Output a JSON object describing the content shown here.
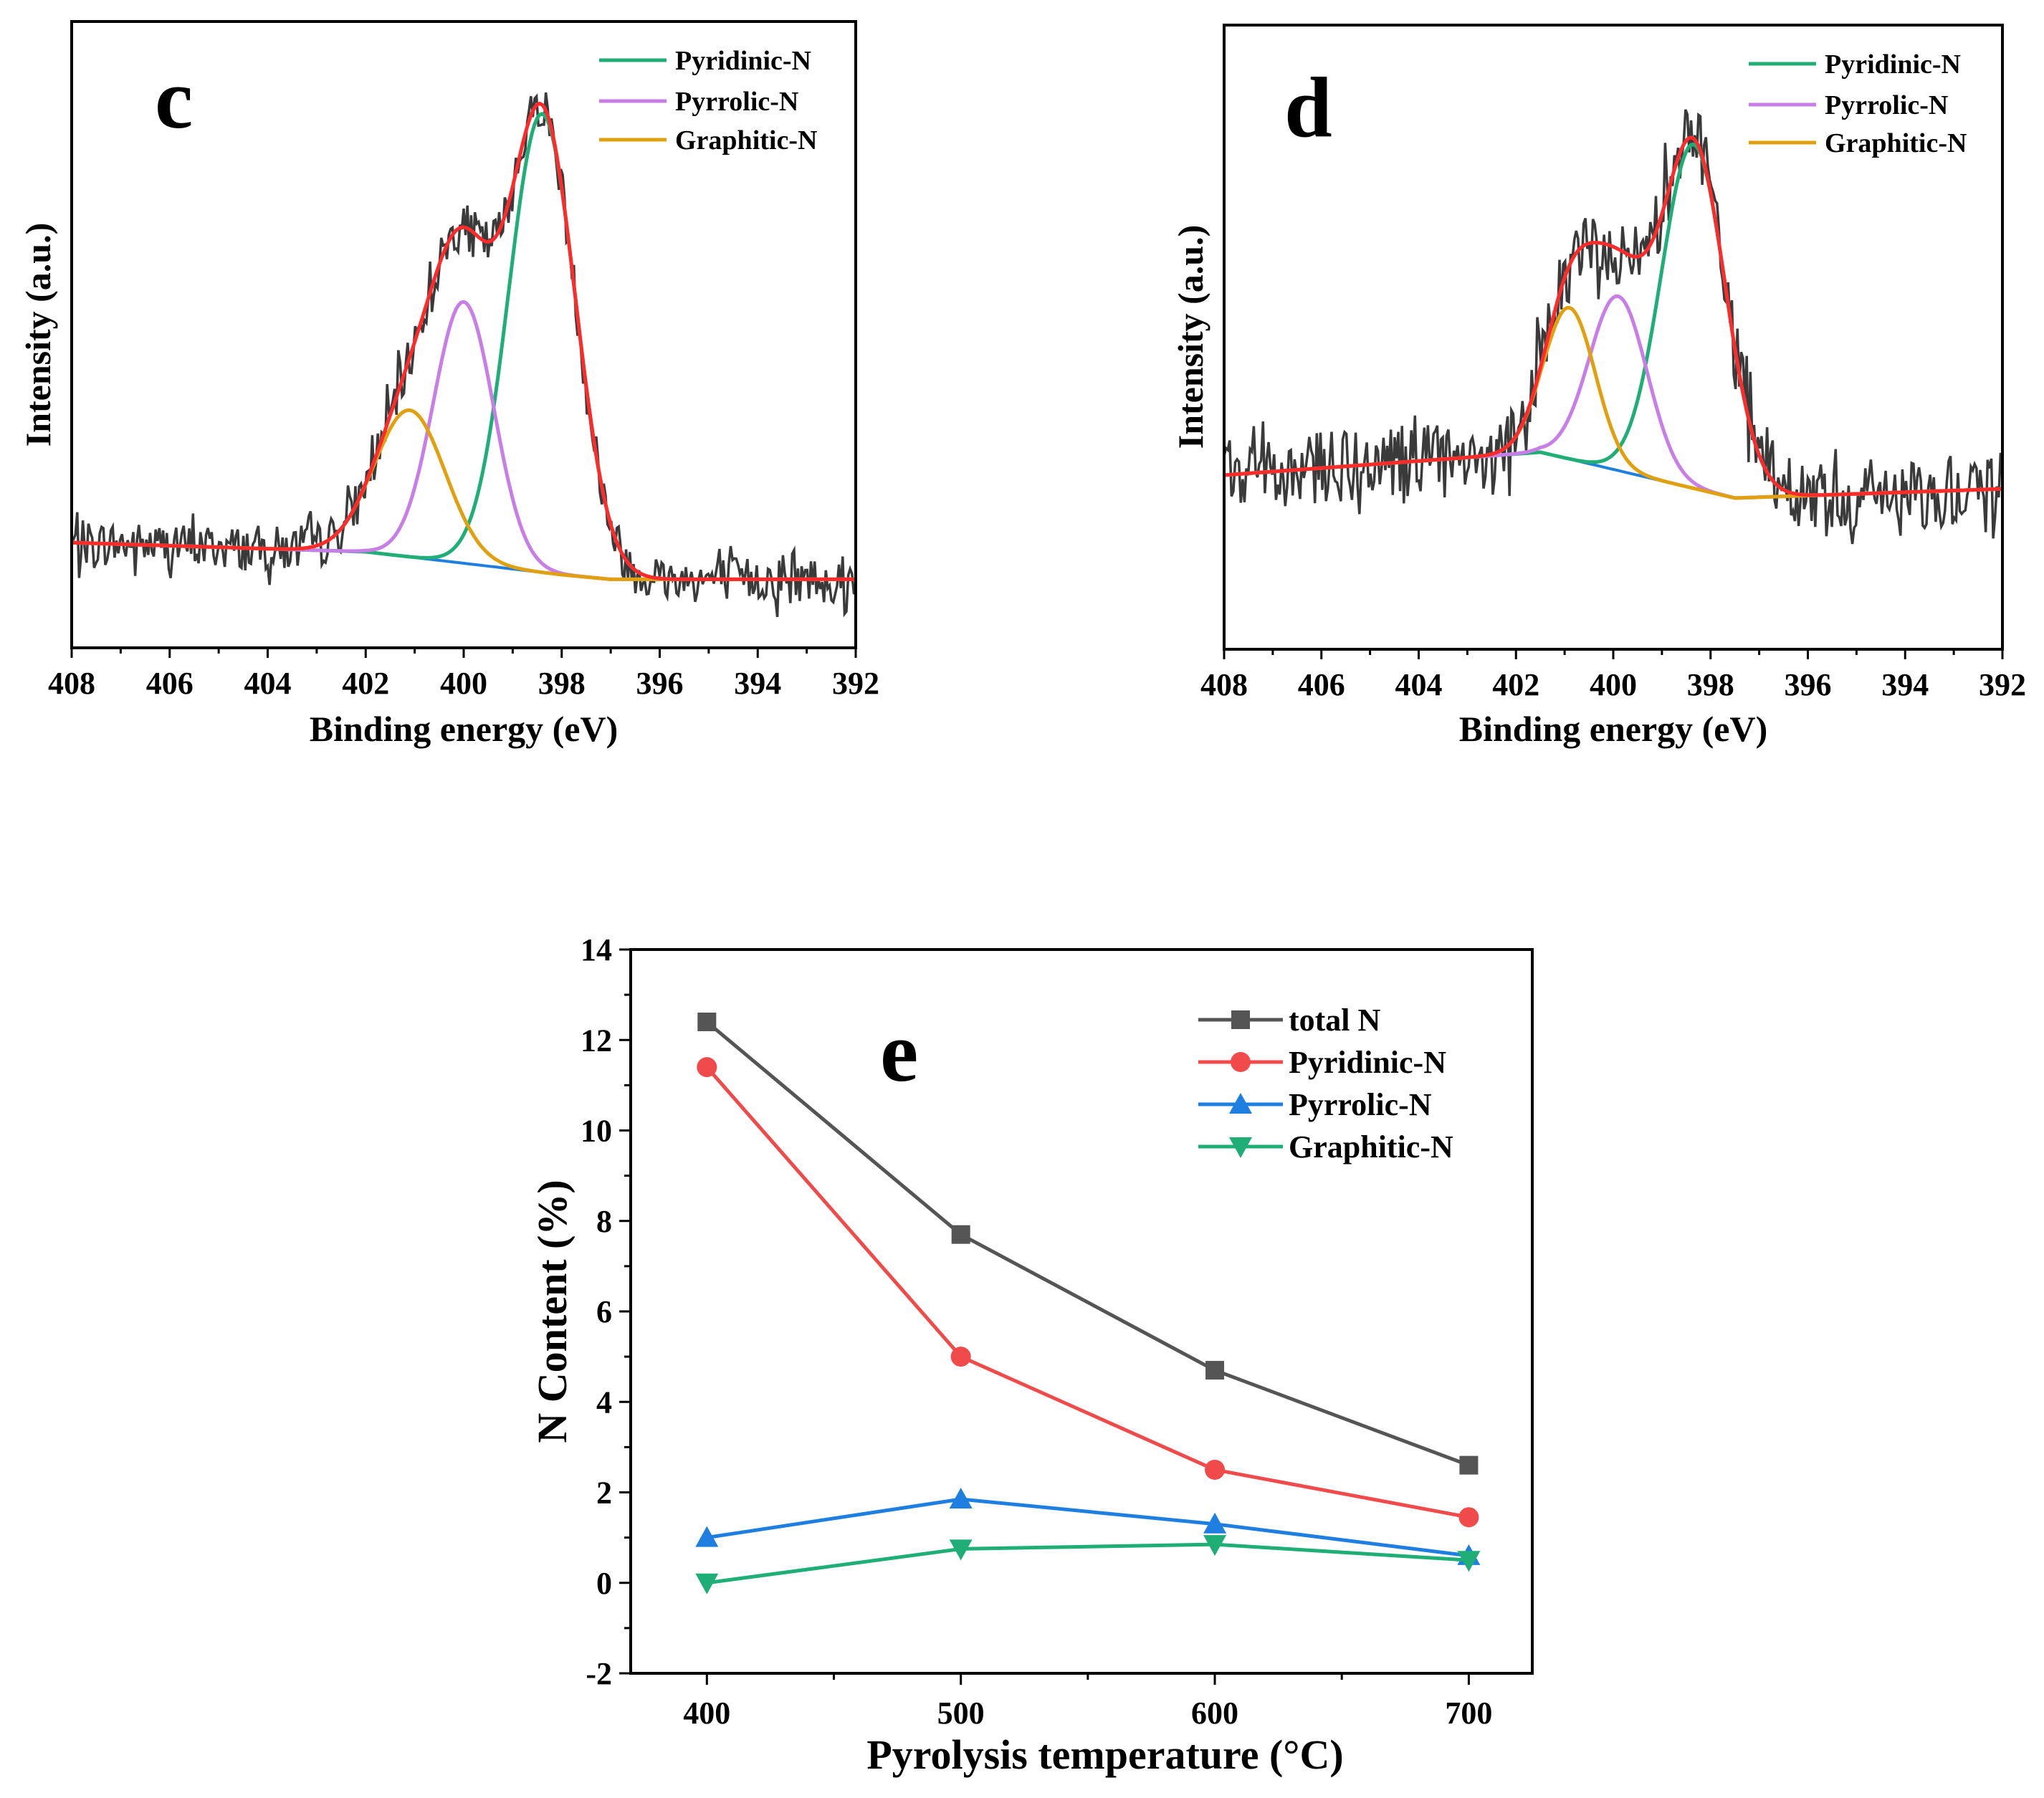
{
  "chart_data": [
    {
      "type": "line",
      "panel_label": "c",
      "title": "",
      "xlabel": "Binding energy (eV)",
      "ylabel": "Intensity (a.u.)",
      "xlim": [
        408,
        392
      ],
      "x_ticks": [
        408,
        406,
        404,
        402,
        400,
        398,
        396,
        394,
        392
      ],
      "y_ticks_labeled": false,
      "legend_position": "top-right",
      "colors": {
        "raw": "#3a3a3a",
        "envelope": "#ff2b2b",
        "background": "#1f7fe0",
        "Pyridinic-N": "#1fae76",
        "Pyrrolic-N": "#c77ee6",
        "Graphitic-N": "#e0a010"
      },
      "background": {
        "x": [
          408,
          402,
          398,
          397,
          392
        ],
        "y": [
          0.02,
          0.0,
          -0.05,
          -0.06,
          -0.06
        ]
      },
      "series": [
        {
          "name": "Pyridinic-N",
          "center": 398.4,
          "height": 1.0,
          "fwhm": 1.6
        },
        {
          "name": "Pyrrolic-N",
          "center": 400.0,
          "height": 0.57,
          "fwhm": 1.45
        },
        {
          "name": "Graphitic-N",
          "center": 401.1,
          "height": 0.32,
          "fwhm": 1.7
        }
      ],
      "legend": [
        "Pyridinic-N",
        "Pyrrolic-N",
        "Graphitic-N"
      ]
    },
    {
      "type": "line",
      "panel_label": "d",
      "title": "",
      "xlabel": "Binding energy (eV)",
      "ylabel": "Intensity (a.u.)",
      "xlim": [
        408,
        392
      ],
      "x_ticks": [
        408,
        406,
        404,
        402,
        400,
        398,
        396,
        394,
        392
      ],
      "y_ticks_labeled": false,
      "legend_position": "top-right",
      "colors": {
        "raw": "#3a3a3a",
        "envelope": "#ff2b2b",
        "background": "#1f7fe0",
        "Pyridinic-N": "#1fae76",
        "Pyrrolic-N": "#c77ee6",
        "Graphitic-N": "#e0a010"
      },
      "background": {
        "x": [
          408,
          401.5,
          397.5,
          392
        ],
        "y": [
          0.05,
          0.1,
          0.0,
          0.02
        ]
      },
      "series": [
        {
          "name": "Pyridinic-N",
          "center": 398.35,
          "height": 0.75,
          "fwhm": 1.55
        },
        {
          "name": "Pyrrolic-N",
          "center": 399.9,
          "height": 0.38,
          "fwhm": 1.4
        },
        {
          "name": "Graphitic-N",
          "center": 400.9,
          "height": 0.33,
          "fwhm": 1.25
        }
      ],
      "legend": [
        "Pyridinic-N",
        "Pyrrolic-N",
        "Graphitic-N"
      ]
    },
    {
      "type": "line",
      "panel_label": "e",
      "title": "",
      "xlabel": "Pyrolysis temperature  (°C)",
      "ylabel": "N Content (%)",
      "x": [
        400,
        500,
        600,
        700
      ],
      "xlim": [
        370,
        725
      ],
      "ylim": [
        -2,
        14
      ],
      "x_ticks": [
        400,
        500,
        600,
        700
      ],
      "y_ticks": [
        -2,
        0,
        2,
        4,
        6,
        8,
        10,
        12,
        14
      ],
      "legend_position": "top-right",
      "series": [
        {
          "name": "total N",
          "values": [
            12.4,
            7.7,
            4.7,
            2.6
          ],
          "color": "#555555",
          "marker": "square"
        },
        {
          "name": "Pyridinic-N",
          "values": [
            11.4,
            5.0,
            2.5,
            1.45
          ],
          "color": "#f04a4a",
          "marker": "circle"
        },
        {
          "name": "Pyrrolic-N",
          "values": [
            1.0,
            1.85,
            1.3,
            0.6
          ],
          "color": "#1f7fe0",
          "marker": "triangle-up"
        },
        {
          "name": "Graphitic-N",
          "values": [
            0.0,
            0.75,
            0.85,
            0.5
          ],
          "color": "#1fae76",
          "marker": "triangle-down"
        }
      ]
    }
  ]
}
